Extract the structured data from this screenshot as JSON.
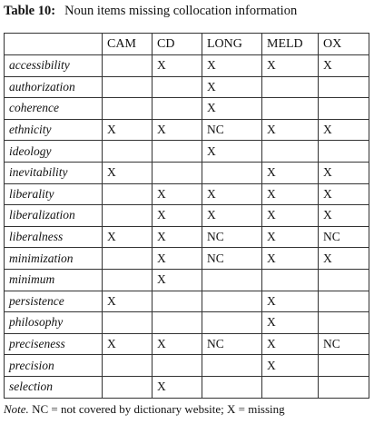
{
  "caption": {
    "label": "Table 10:",
    "text": "Noun items missing collocation information"
  },
  "table": {
    "columns": [
      "CAM",
      "CD",
      "LONG",
      "MELD",
      "OX"
    ],
    "rows": [
      {
        "term": "accessibility",
        "cells": [
          null,
          "X",
          "X",
          "X",
          "X"
        ]
      },
      {
        "term": "authorization",
        "cells": [
          null,
          null,
          "X",
          null,
          null
        ]
      },
      {
        "term": "coherence",
        "cells": [
          null,
          null,
          "X",
          null,
          null
        ]
      },
      {
        "term": "ethnicity",
        "cells": [
          "X",
          "X",
          "NC",
          "X",
          "X"
        ]
      },
      {
        "term": "ideology",
        "cells": [
          null,
          null,
          "X",
          null,
          null
        ]
      },
      {
        "term": "inevitability",
        "cells": [
          "X",
          null,
          null,
          "X",
          "X"
        ]
      },
      {
        "term": "liberality",
        "cells": [
          null,
          "X",
          "X",
          "X",
          "X"
        ]
      },
      {
        "term": "liberalization",
        "cells": [
          null,
          "X",
          "X",
          "X",
          "X"
        ]
      },
      {
        "term": "liberalness",
        "cells": [
          "X",
          "X",
          "NC",
          "X",
          "NC"
        ]
      },
      {
        "term": "minimization",
        "cells": [
          null,
          "X",
          "NC",
          "X",
          "X"
        ]
      },
      {
        "term": "minimum",
        "cells": [
          null,
          "X",
          null,
          null,
          null
        ]
      },
      {
        "term": "persistence",
        "cells": [
          "X",
          null,
          null,
          "X",
          null
        ]
      },
      {
        "term": "philosophy",
        "cells": [
          null,
          null,
          null,
          "X",
          null
        ]
      },
      {
        "term": "preciseness",
        "cells": [
          "X",
          "X",
          "NC",
          "X",
          "NC"
        ]
      },
      {
        "term": "precision",
        "cells": [
          null,
          null,
          null,
          "X",
          null
        ]
      },
      {
        "term": "selection",
        "cells": [
          null,
          "X",
          null,
          null,
          null
        ]
      }
    ]
  },
  "note": {
    "label": "Note.",
    "text": "NC = not covered by dictionary website; X = missing"
  }
}
